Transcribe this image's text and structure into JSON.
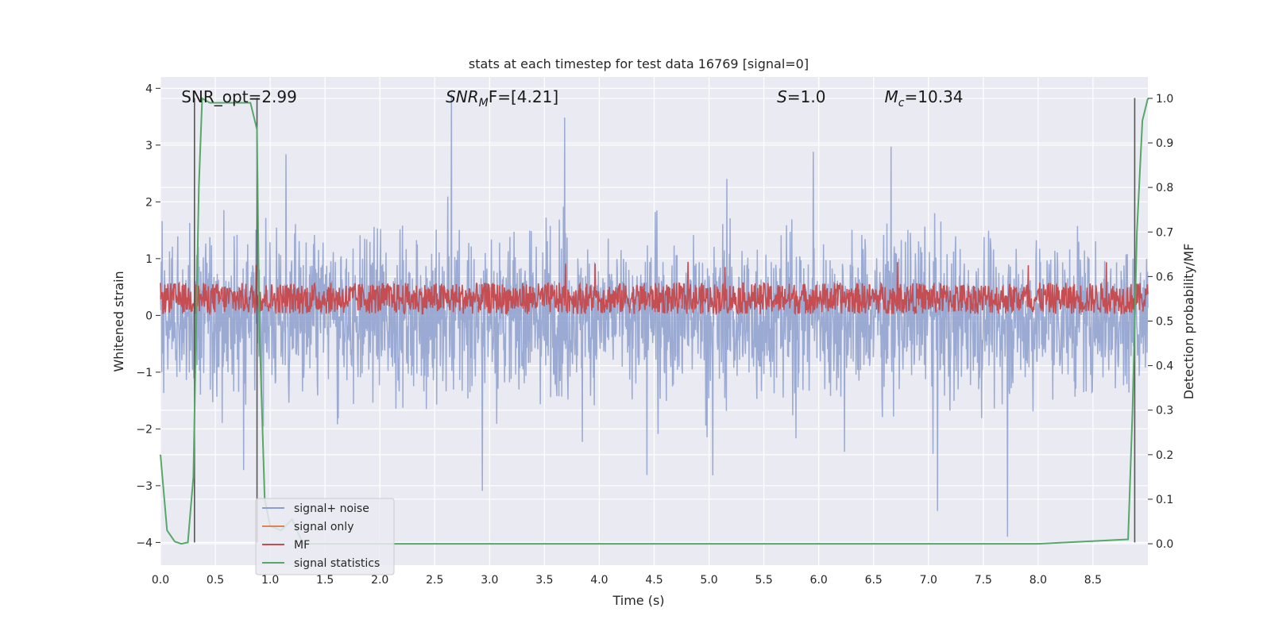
{
  "chart_data": {
    "type": "line",
    "title": "stats at each timestep for test data 16769 [signal=0]",
    "xlabel": "Time (s)",
    "ylabel": "Whitened strain",
    "ylabel_right": "Detection probability/MF",
    "xlim": [
      0.0,
      9.0
    ],
    "ylim": [
      -4.4,
      4.2
    ],
    "ylim_right": [
      -0.048,
      1.048
    ],
    "x_ticks": [
      0.0,
      0.5,
      1.0,
      1.5,
      2.0,
      2.5,
      3.0,
      3.5,
      4.0,
      4.5,
      5.0,
      5.5,
      6.0,
      6.5,
      7.0,
      7.5,
      8.0,
      8.5
    ],
    "x_tick_labels": [
      "0.0",
      "0.5",
      "1.0",
      "1.5",
      "2.0",
      "2.5",
      "3.0",
      "3.5",
      "4.0",
      "4.5",
      "5.0",
      "5.5",
      "6.0",
      "6.5",
      "7.0",
      "7.5",
      "8.0",
      "8.5"
    ],
    "y_ticks": [
      -4,
      -3,
      -2,
      -1,
      0,
      1,
      2,
      3,
      4
    ],
    "y_tick_labels": [
      "−4",
      "−3",
      "−2",
      "−1",
      "0",
      "1",
      "2",
      "3",
      "4"
    ],
    "y_right_ticks": [
      0.0,
      0.1,
      0.2,
      0.3,
      0.4,
      0.5,
      0.6,
      0.7,
      0.8,
      0.9,
      1.0
    ],
    "y_right_tick_labels": [
      "0.0",
      "0.1",
      "0.2",
      "0.3",
      "0.4",
      "0.5",
      "0.6",
      "0.7",
      "0.8",
      "0.9",
      "1.0"
    ],
    "grid": true,
    "legend_placement": "lower-left",
    "annotations": [
      {
        "text": "SNR_opt=2.99",
        "x": 0.19,
        "y": 3.85
      },
      {
        "text": "SNR_MF=[4.21]",
        "x": 2.6,
        "y": 3.85,
        "math": "SNR",
        "sub": "M",
        "tail": "F=[4.21]"
      },
      {
        "text": "S=1.0",
        "x": 5.62,
        "y": 3.85,
        "math": "S",
        "tail": "=1.0"
      },
      {
        "text": "M_c=10.34",
        "x": 6.6,
        "y": 3.85,
        "math": "M",
        "sub": "c",
        "tail": "=10.34"
      }
    ],
    "vlines": [
      {
        "x": 0.31,
        "y_range": [
          -4.0,
          3.83
        ]
      },
      {
        "x": 0.88,
        "y_range": [
          -4.0,
          3.83
        ]
      },
      {
        "x": 8.88,
        "y_range": [
          -4.0,
          3.83
        ]
      }
    ],
    "series": [
      {
        "name": "signal+ noise",
        "color": "#8c9fcc",
        "kind": "noise",
        "x_range": [
          0.0,
          9.0
        ],
        "amplitude_typical": 1.5,
        "amplitude_peak": 3.9
      },
      {
        "name": "signal only",
        "color": "#dd8452",
        "kind": "flat",
        "values": []
      },
      {
        "name": "MF",
        "color": "#c44e52",
        "kind": "band",
        "x_range": [
          0.0,
          9.0
        ],
        "y_band": [
          0.0,
          0.7
        ],
        "y_peak": 0.95
      },
      {
        "name": "signal statistics",
        "color": "#55a868",
        "kind": "line",
        "axis": "right",
        "x": [
          0.0,
          0.06,
          0.13,
          0.19,
          0.25,
          0.3,
          0.35,
          0.38,
          0.45,
          0.6,
          0.75,
          0.82,
          0.88,
          0.9,
          0.95,
          1.0,
          1.1,
          1.2,
          1.3,
          1.5,
          2.0,
          4.0,
          6.0,
          8.0,
          8.82,
          8.86,
          8.9,
          8.95,
          9.0
        ],
        "y": [
          0.2,
          0.03,
          0.005,
          0.0,
          0.003,
          0.15,
          0.8,
          1.0,
          0.99,
          0.99,
          0.99,
          0.99,
          0.93,
          0.5,
          0.1,
          0.04,
          0.03,
          0.055,
          0.0,
          0.0,
          0.0,
          0.0,
          0.0,
          0.0,
          0.01,
          0.3,
          0.7,
          0.95,
          1.0
        ]
      }
    ]
  }
}
